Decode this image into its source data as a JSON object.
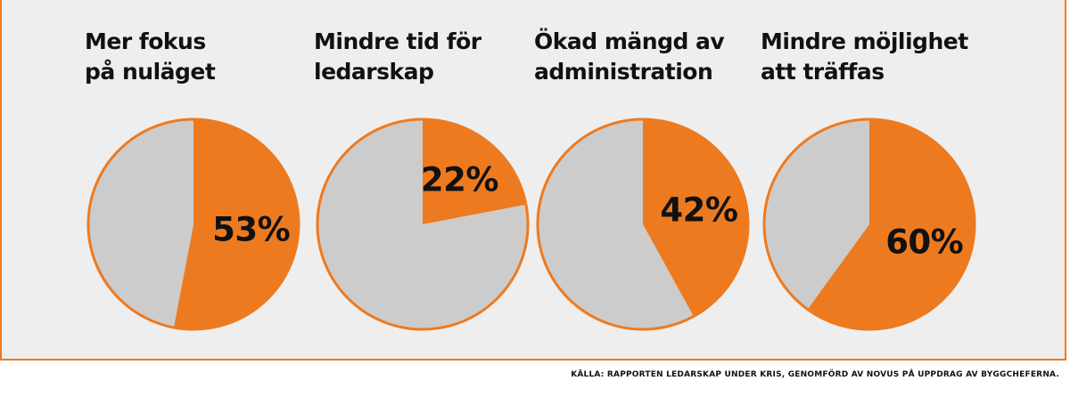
{
  "chart_data": [
    {
      "type": "pie",
      "title": "Mer fokus på nuläget",
      "title_lines": [
        "Mer fokus",
        "på nuläget"
      ],
      "slices": [
        {
          "value": 53,
          "label": "53%",
          "color": "#ee7a1f"
        },
        {
          "value": 47,
          "label": "",
          "color": "#cccccc"
        }
      ]
    },
    {
      "type": "pie",
      "title": "Mindre tid för ledarskap",
      "title_lines": [
        "Mindre tid för",
        "ledarskap"
      ],
      "slices": [
        {
          "value": 22,
          "label": "22%",
          "color": "#ee7a1f"
        },
        {
          "value": 78,
          "label": "",
          "color": "#cccccc"
        }
      ]
    },
    {
      "type": "pie",
      "title": "Ökad mängd av administration",
      "title_lines": [
        "Ökad mängd av",
        "administration"
      ],
      "slices": [
        {
          "value": 42,
          "label": "42%",
          "color": "#ee7a1f"
        },
        {
          "value": 58,
          "label": "",
          "color": "#cccccc"
        }
      ]
    },
    {
      "type": "pie",
      "title": "Mindre möjlighet att träffas",
      "title_lines": [
        "Mindre möjlighet",
        "att träffas"
      ],
      "slices": [
        {
          "value": 60,
          "label": "60%",
          "color": "#ee7a1f"
        },
        {
          "value": 40,
          "label": "",
          "color": "#cccccc"
        }
      ]
    }
  ],
  "source": "KÄLLA: RAPPORTEN LEDARSKAP UNDER KRIS, GENOMFÖRD AV NOVUS PÅ UPPDRAG AV BYGGCHEFERNA.",
  "colors": {
    "accent": "#ee7a1f",
    "rest": "#cccccc",
    "background": "#eeeeee",
    "text": "#111111"
  }
}
